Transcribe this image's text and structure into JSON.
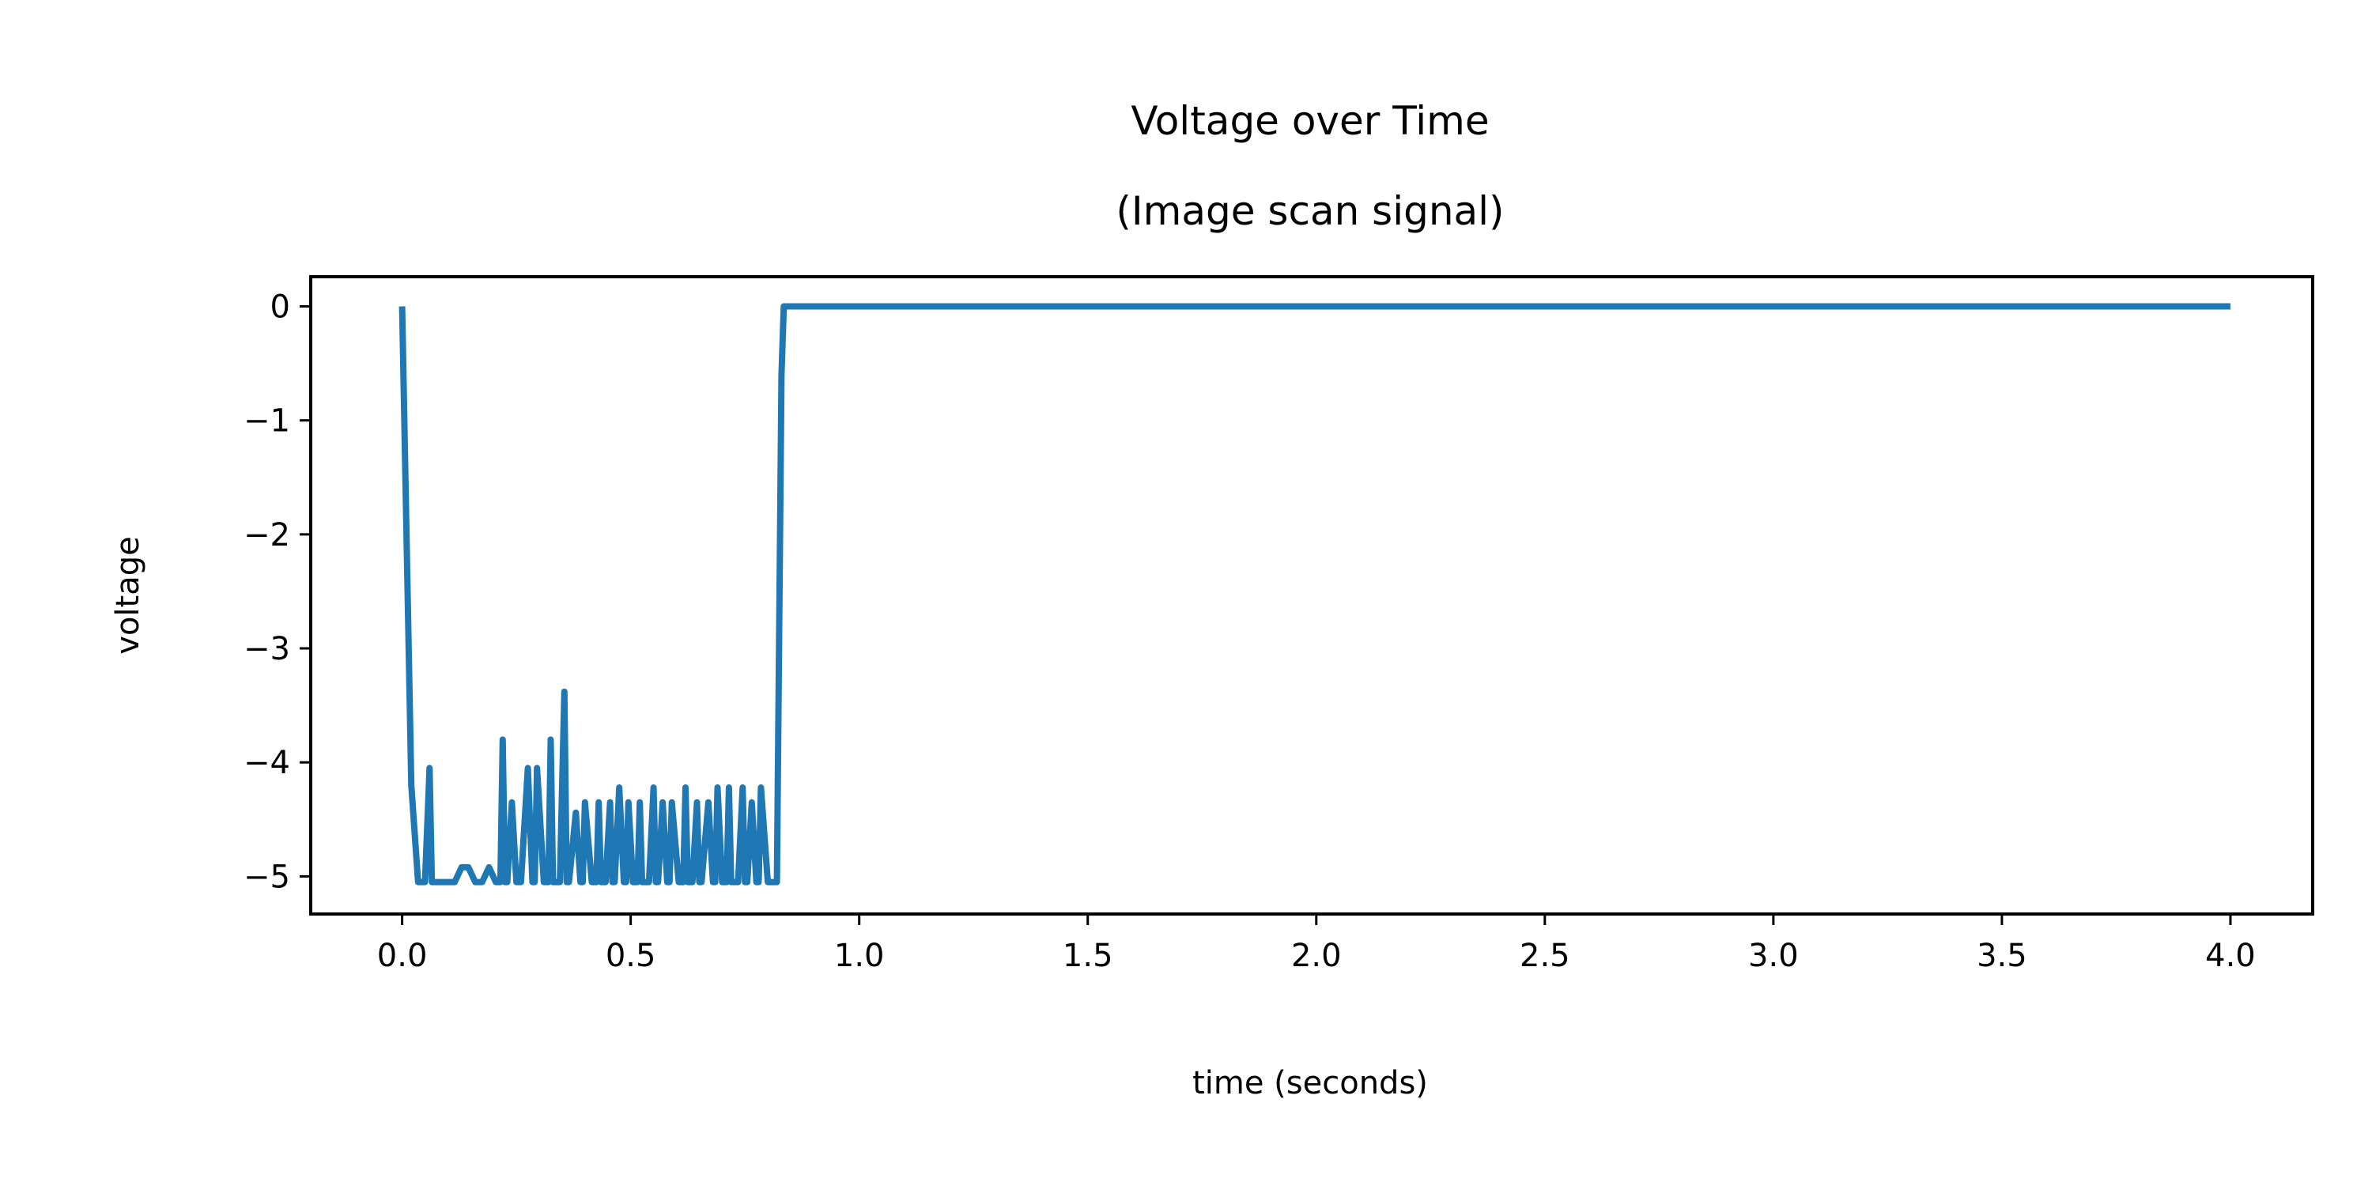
{
  "chart_data": {
    "type": "line",
    "title_line1": "Voltage over Time",
    "title_line2": "(Image scan signal)",
    "xlabel": "time (seconds)",
    "ylabel": "voltage",
    "xlim": [
      -0.2,
      4.18
    ],
    "ylim": [
      -5.33,
      0.26
    ],
    "xticks": [
      0.0,
      0.5,
      1.0,
      1.5,
      2.0,
      2.5,
      3.0,
      3.5,
      4.0
    ],
    "xtick_labels": [
      "0.0",
      "0.5",
      "1.0",
      "1.5",
      "2.0",
      "2.5",
      "3.0",
      "3.5",
      "4.0"
    ],
    "yticks": [
      0,
      -1,
      -2,
      -3,
      -4,
      -5
    ],
    "ytick_labels": [
      "0",
      "−1",
      "−2",
      "−3",
      "−4",
      "−5"
    ],
    "grid": false,
    "legend": "none",
    "series_color": "#1f77b4",
    "series": [
      {
        "x": [
          0.0,
          0.01,
          0.02,
          0.035,
          0.05,
          0.055,
          0.06,
          0.065,
          0.08,
          0.1,
          0.115,
          0.13,
          0.145,
          0.16,
          0.175,
          0.19,
          0.205,
          0.215,
          0.22,
          0.225,
          0.23,
          0.24,
          0.25,
          0.26,
          0.275,
          0.285,
          0.29,
          0.295,
          0.31,
          0.32,
          0.325,
          0.33,
          0.345,
          0.355,
          0.36,
          0.365,
          0.38,
          0.39,
          0.395,
          0.4,
          0.415,
          0.425,
          0.43,
          0.435,
          0.445,
          0.455,
          0.46,
          0.465,
          0.475,
          0.485,
          0.49,
          0.495,
          0.505,
          0.515,
          0.52,
          0.525,
          0.54,
          0.55,
          0.555,
          0.56,
          0.57,
          0.58,
          0.585,
          0.59,
          0.605,
          0.615,
          0.62,
          0.625,
          0.635,
          0.645,
          0.65,
          0.655,
          0.67,
          0.68,
          0.685,
          0.69,
          0.7,
          0.71,
          0.715,
          0.72,
          0.735,
          0.745,
          0.75,
          0.755,
          0.765,
          0.775,
          0.78,
          0.785,
          0.8,
          0.81,
          0.815,
          0.82,
          0.83,
          0.835,
          0.84,
          0.845,
          0.9,
          1.0,
          2.0,
          3.0,
          4.0
        ],
        "y": [
          0.0,
          -2.1,
          -4.2,
          -5.05,
          -5.05,
          -4.55,
          -4.05,
          -5.05,
          -5.05,
          -5.05,
          -5.05,
          -4.92,
          -4.92,
          -5.05,
          -5.05,
          -4.92,
          -5.05,
          -5.05,
          -3.8,
          -5.05,
          -5.05,
          -4.35,
          -5.05,
          -5.05,
          -4.05,
          -5.05,
          -5.05,
          -4.05,
          -5.05,
          -5.05,
          -3.8,
          -5.05,
          -5.05,
          -3.38,
          -5.05,
          -5.05,
          -4.44,
          -5.05,
          -5.05,
          -4.35,
          -5.05,
          -5.05,
          -4.35,
          -5.05,
          -5.05,
          -4.35,
          -5.05,
          -5.05,
          -4.22,
          -5.05,
          -5.05,
          -4.35,
          -5.05,
          -5.05,
          -4.35,
          -5.05,
          -5.05,
          -4.22,
          -5.05,
          -5.05,
          -4.35,
          -5.05,
          -5.05,
          -4.35,
          -5.05,
          -5.05,
          -4.22,
          -5.05,
          -5.05,
          -4.35,
          -5.05,
          -5.05,
          -4.35,
          -5.05,
          -5.05,
          -4.22,
          -5.05,
          -5.05,
          -4.22,
          -5.05,
          -5.05,
          -4.22,
          -5.05,
          -5.05,
          -4.35,
          -5.05,
          -5.05,
          -4.22,
          -5.05,
          -5.05,
          -5.05,
          -5.05,
          -0.6,
          0.0,
          0.0,
          0.0,
          0.0,
          0.0,
          0.0,
          0.0,
          0.0
        ]
      }
    ]
  }
}
